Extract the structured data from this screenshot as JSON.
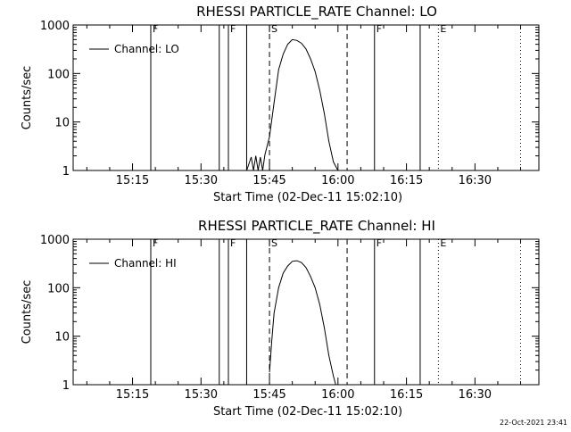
{
  "footer_timestamp": "22-Oct-2021 23:41",
  "chart_data": [
    {
      "type": "line",
      "title": "RHESSI PARTICLE_RATE Channel: LO",
      "xlabel": "Start Time (02-Dec-11 15:02:10)",
      "ylabel": "Counts/sec",
      "yscale": "log",
      "ylim": [
        1,
        1000
      ],
      "xlim": [
        "15:02",
        "16:44"
      ],
      "xticks": [
        "15:15",
        "15:30",
        "15:45",
        "16:00",
        "16:15",
        "16:30"
      ],
      "yticks": [
        "1",
        "10",
        "100",
        "1000"
      ],
      "legend": {
        "position": "top-left",
        "entries": [
          "Channel: LO"
        ]
      },
      "series": [
        {
          "name": "Channel: LO",
          "x": [
            "15:40",
            "15:41",
            "15:41:30",
            "15:42",
            "15:42:30",
            "15:43",
            "15:43:30",
            "15:44",
            "15:45",
            "15:46",
            "15:47",
            "15:48",
            "15:49",
            "15:50",
            "15:51",
            "15:52",
            "15:53",
            "15:54",
            "15:55",
            "15:56",
            "15:57",
            "15:58",
            "15:59",
            "16:00"
          ],
          "y": [
            1,
            1.9,
            1,
            2.0,
            1,
            1.9,
            1,
            2.1,
            5,
            25,
            120,
            250,
            400,
            500,
            480,
            420,
            320,
            200,
            110,
            45,
            15,
            4,
            1.5,
            1
          ]
        }
      ],
      "vlines": [
        {
          "time": "15:19",
          "style": "solid",
          "label": "F"
        },
        {
          "time": "15:34",
          "style": "solid",
          "label": ""
        },
        {
          "time": "15:36",
          "style": "solid",
          "label": "F"
        },
        {
          "time": "15:40",
          "style": "solid",
          "label": ""
        },
        {
          "time": "15:45",
          "style": "dashed",
          "label": "S"
        },
        {
          "time": "16:02",
          "style": "dashed",
          "label": ""
        },
        {
          "time": "16:08",
          "style": "solid",
          "label": "F"
        },
        {
          "time": "16:18",
          "style": "solid",
          "label": ""
        },
        {
          "time": "16:22",
          "style": "dotted",
          "label": "E"
        },
        {
          "time": "16:40",
          "style": "dotted",
          "label": ""
        }
      ]
    },
    {
      "type": "line",
      "title": "RHESSI PARTICLE_RATE Channel: HI",
      "xlabel": "Start Time (02-Dec-11 15:02:10)",
      "ylabel": "Counts/sec",
      "yscale": "log",
      "ylim": [
        1,
        1000
      ],
      "xlim": [
        "15:02",
        "16:44"
      ],
      "xticks": [
        "15:15",
        "15:30",
        "15:45",
        "16:00",
        "16:15",
        "16:30"
      ],
      "yticks": [
        "1",
        "10",
        "100",
        "1000"
      ],
      "legend": {
        "position": "top-left",
        "entries": [
          "Channel: HI"
        ]
      },
      "series": [
        {
          "name": "Channel: HI",
          "x": [
            "15:45",
            "15:45:30",
            "15:46",
            "15:47",
            "15:48",
            "15:49",
            "15:50",
            "15:51",
            "15:52",
            "15:53",
            "15:54",
            "15:55",
            "15:56",
            "15:57",
            "15:58",
            "15:59",
            "15:59:30"
          ],
          "y": [
            1.8,
            8,
            30,
            100,
            200,
            280,
            350,
            360,
            330,
            260,
            170,
            100,
            45,
            15,
            4,
            1.5,
            1
          ]
        }
      ],
      "vlines": [
        {
          "time": "15:19",
          "style": "solid",
          "label": "F"
        },
        {
          "time": "15:34",
          "style": "solid",
          "label": ""
        },
        {
          "time": "15:36",
          "style": "solid",
          "label": "F"
        },
        {
          "time": "15:40",
          "style": "solid",
          "label": ""
        },
        {
          "time": "15:45",
          "style": "dashed",
          "label": "S"
        },
        {
          "time": "16:02",
          "style": "dashed",
          "label": ""
        },
        {
          "time": "16:08",
          "style": "solid",
          "label": "F"
        },
        {
          "time": "16:18",
          "style": "solid",
          "label": ""
        },
        {
          "time": "16:22",
          "style": "dotted",
          "label": "E"
        },
        {
          "time": "16:40",
          "style": "dotted",
          "label": ""
        }
      ]
    }
  ]
}
